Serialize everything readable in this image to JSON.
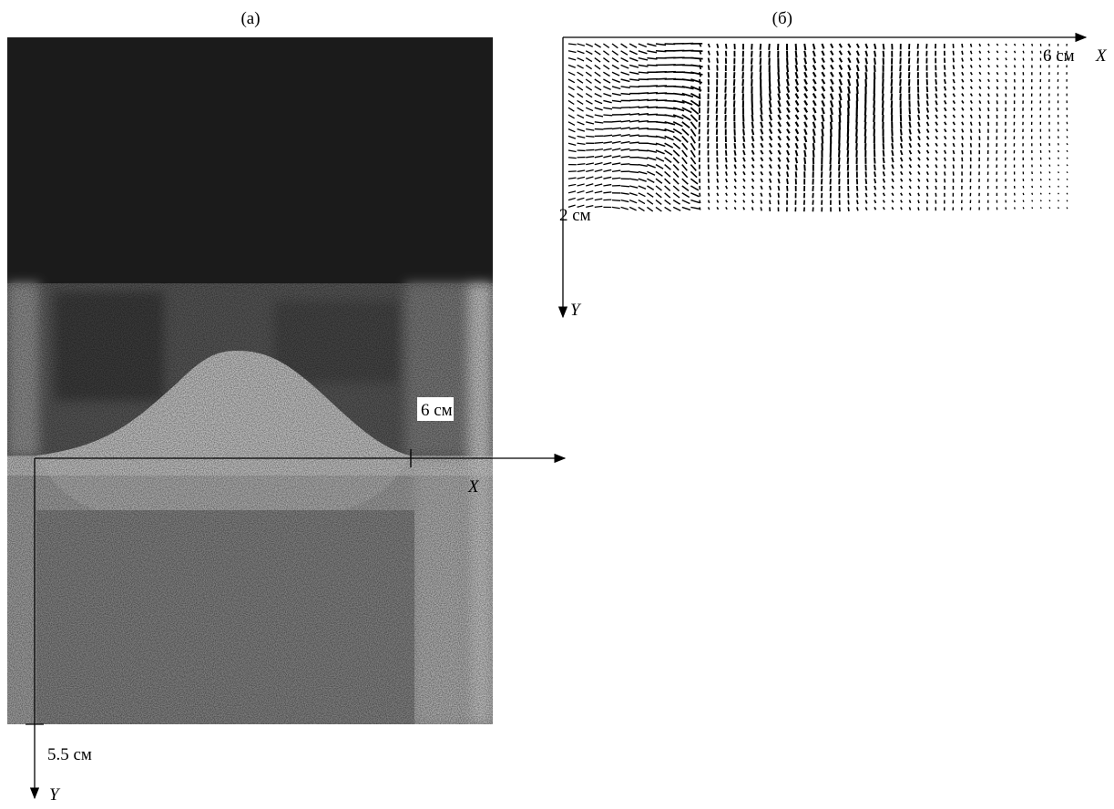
{
  "panels": [
    {
      "label": "(a)",
      "x_axis": {
        "label": "X",
        "tick_label": "6 см"
      },
      "y_axis": {
        "label": "Y",
        "tick_label": "5.5 см"
      }
    },
    {
      "label": "(б)",
      "x_axis": {
        "label": "X",
        "tick_label": "6 см"
      },
      "y_axis": {
        "label": "Y",
        "tick_label": "2 см"
      }
    }
  ]
}
